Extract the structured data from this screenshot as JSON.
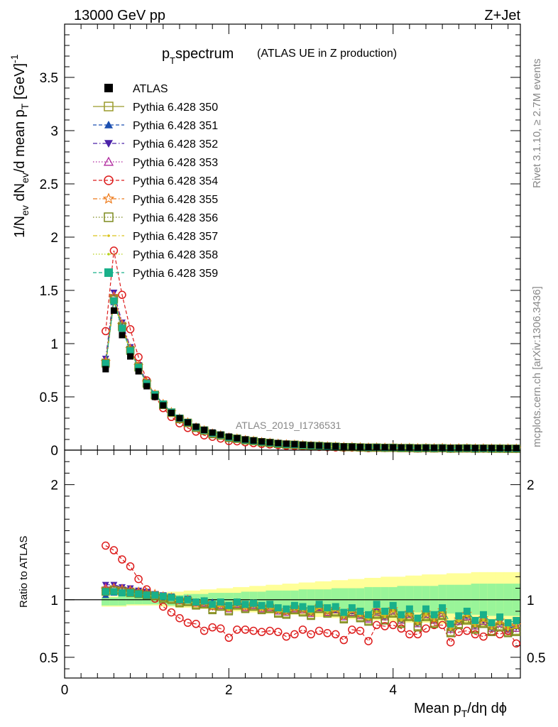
{
  "header": {
    "left": "13000 GeV pp",
    "right": "Z+Jet"
  },
  "title": {
    "main": "p",
    "sub": "T",
    "rest": " spectrum",
    "small": "(ATLAS UE in Z production)"
  },
  "side_labels": {
    "rivet": "Rivet 3.1.10, ≥ 2.7M events",
    "mcplots": "mcplots.cern.ch [arXiv:1306.3436]"
  },
  "watermark": "ATLAS_2019_I1736531",
  "axes": {
    "ylabel_top": "1/N_ev dN_ev/d mean p_T [GeV]^-1",
    "ylabel_bottom": "Ratio to ATLAS",
    "xlabel": "Mean p_T/dη dϕ",
    "top_ticks": [
      "0",
      "0.5",
      "1",
      "1.5",
      "2",
      "2.5",
      "3",
      "3.5"
    ],
    "bottom_ticks": [
      "0.5",
      "1",
      "2"
    ],
    "x_ticks": [
      "0",
      "2",
      "4"
    ]
  },
  "legend": [
    {
      "label": "ATLAS",
      "color": "#000000",
      "marker": "filled-square",
      "line": "none"
    },
    {
      "label": "Pythia 6.428 350",
      "color": "#9a9a2a",
      "marker": "open-square",
      "line": "solid"
    },
    {
      "label": "Pythia 6.428 351",
      "color": "#1b4fb0",
      "marker": "filled-triangle-up",
      "line": "dashed"
    },
    {
      "label": "Pythia 6.428 352",
      "color": "#4a22a8",
      "marker": "filled-triangle-down",
      "line": "dashdot"
    },
    {
      "label": "Pythia 6.428 353",
      "color": "#b0299e",
      "marker": "open-triangle-up",
      "line": "dotted"
    },
    {
      "label": "Pythia 6.428 354",
      "color": "#dd1b1b",
      "marker": "open-circle",
      "line": "dashed"
    },
    {
      "label": "Pythia 6.428 355",
      "color": "#ee7a1a",
      "marker": "open-star",
      "line": "dashdot"
    },
    {
      "label": "Pythia 6.428 356",
      "color": "#7d8a1e",
      "marker": "open-square",
      "line": "dotted"
    },
    {
      "label": "Pythia 6.428 357",
      "color": "#d9c21a",
      "marker": "small-dot",
      "line": "dashdot"
    },
    {
      "label": "Pythia 6.428 358",
      "color": "#b6d11a",
      "marker": "small-dot",
      "line": "dotted"
    },
    {
      "label": "Pythia 6.428 359",
      "color": "#19b08a",
      "marker": "filled-square",
      "line": "dashed"
    }
  ],
  "chart_data": {
    "type": "line",
    "xlim": [
      0,
      5.55
    ],
    "ylim_top": [
      0,
      4.0
    ],
    "ylim_bottom": [
      0.32,
      2.3
    ],
    "x": [
      0.5,
      0.6,
      0.7,
      0.8,
      0.9,
      1.0,
      1.1,
      1.2,
      1.3,
      1.4,
      1.5,
      1.6,
      1.7,
      1.8,
      1.9,
      2.0,
      2.1,
      2.2,
      2.3,
      2.4,
      2.5,
      2.6,
      2.7,
      2.8,
      2.9,
      3.0,
      3.1,
      3.2,
      3.3,
      3.4,
      3.5,
      3.6,
      3.7,
      3.8,
      3.9,
      4.0,
      4.1,
      4.2,
      4.3,
      4.4,
      4.5,
      4.6,
      4.7,
      4.8,
      4.9,
      5.0,
      5.1,
      5.2,
      5.3,
      5.4,
      5.5
    ],
    "atlas": [
      0.76,
      1.31,
      1.08,
      0.88,
      0.74,
      0.6,
      0.5,
      0.42,
      0.35,
      0.3,
      0.26,
      0.22,
      0.19,
      0.165,
      0.145,
      0.127,
      0.112,
      0.1,
      0.09,
      0.081,
      0.073,
      0.066,
      0.06,
      0.055,
      0.05,
      0.046,
      0.042,
      0.039,
      0.036,
      0.034,
      0.032,
      0.03,
      0.028,
      0.027,
      0.026,
      0.025,
      0.024,
      0.023,
      0.022,
      0.022,
      0.021,
      0.021,
      0.02,
      0.02,
      0.02,
      0.019,
      0.019,
      0.019,
      0.018,
      0.018,
      0.018
    ],
    "band_inner": [
      0.95,
      0.95,
      0.95,
      0.96,
      0.96,
      0.96,
      0.96,
      0.96,
      0.95,
      0.95,
      0.95,
      0.94,
      0.94,
      0.94,
      0.94,
      0.93,
      0.93,
      0.93,
      0.93,
      0.92,
      0.92,
      0.92,
      0.92,
      0.92,
      0.91,
      0.91,
      0.91,
      0.91,
      0.91,
      0.9,
      0.9,
      0.9,
      0.9,
      0.9,
      0.89,
      0.89,
      0.89,
      0.89,
      0.89,
      0.88,
      0.88,
      0.88,
      0.88,
      0.87,
      0.87,
      0.87,
      0.87,
      0.86,
      0.86,
      0.86,
      0.86
    ],
    "band_inner_hi": [
      1.02,
      1.02,
      1.03,
      1.03,
      1.03,
      1.03,
      1.03,
      1.04,
      1.04,
      1.04,
      1.05,
      1.05,
      1.05,
      1.06,
      1.06,
      1.06,
      1.06,
      1.07,
      1.07,
      1.07,
      1.08,
      1.08,
      1.08,
      1.08,
      1.09,
      1.09,
      1.09,
      1.09,
      1.1,
      1.1,
      1.1,
      1.1,
      1.11,
      1.11,
      1.11,
      1.11,
      1.12,
      1.12,
      1.12,
      1.12,
      1.12,
      1.13,
      1.13,
      1.13,
      1.13,
      1.14,
      1.14,
      1.14,
      1.14,
      1.14,
      1.14
    ],
    "band_outer_lo": [
      0.94,
      0.94,
      0.94,
      0.95,
      0.95,
      0.95,
      0.95,
      0.94,
      0.94,
      0.93,
      0.93,
      0.92,
      0.92,
      0.92,
      0.91,
      0.91,
      0.9,
      0.9,
      0.89,
      0.89,
      0.88,
      0.88,
      0.87,
      0.87,
      0.86,
      0.86,
      0.85,
      0.85,
      0.84,
      0.84,
      0.83,
      0.83,
      0.82,
      0.82,
      0.82,
      0.81,
      0.81,
      0.8,
      0.8,
      0.8,
      0.79,
      0.79,
      0.79,
      0.78,
      0.78,
      0.78,
      0.77,
      0.77,
      0.77,
      0.76,
      0.76
    ],
    "band_outer_hi": [
      1.03,
      1.03,
      1.04,
      1.04,
      1.05,
      1.05,
      1.06,
      1.06,
      1.07,
      1.07,
      1.08,
      1.08,
      1.09,
      1.09,
      1.1,
      1.1,
      1.11,
      1.11,
      1.12,
      1.12,
      1.13,
      1.13,
      1.14,
      1.14,
      1.15,
      1.15,
      1.16,
      1.16,
      1.17,
      1.17,
      1.18,
      1.18,
      1.19,
      1.19,
      1.2,
      1.2,
      1.2,
      1.21,
      1.21,
      1.22,
      1.22,
      1.22,
      1.23,
      1.23,
      1.23,
      1.24,
      1.24,
      1.24,
      1.24,
      1.24,
      1.24
    ],
    "series": [
      {
        "name": "Pythia 6.428 350",
        "ratio": [
          1.08,
          1.09,
          1.08,
          1.07,
          1.06,
          1.05,
          1.04,
          1.02,
          1.01,
          0.98,
          0.99,
          0.96,
          0.97,
          0.92,
          0.95,
          0.91,
          0.96,
          0.93,
          0.95,
          0.92,
          0.93,
          0.89,
          0.88,
          0.92,
          0.9,
          0.87,
          0.93,
          0.89,
          0.9,
          0.84,
          0.89,
          0.85,
          0.82,
          0.88,
          0.83,
          0.89,
          0.8,
          0.86,
          0.77,
          0.86,
          0.8,
          0.87,
          0.72,
          0.79,
          0.83,
          0.75,
          0.8,
          0.73,
          0.77,
          0.72,
          0.73
        ]
      },
      {
        "name": "Pythia 6.428 351",
        "ratio": [
          1.04,
          1.06,
          1.06,
          1.06,
          1.05,
          1.05,
          1.04,
          1.03,
          1.02,
          1.0,
          1.0,
          0.98,
          0.98,
          0.98,
          0.97,
          0.95,
          0.97,
          0.95,
          0.96,
          0.94,
          0.94,
          0.92,
          0.9,
          0.93,
          0.92,
          0.89,
          0.93,
          0.9,
          0.91,
          0.86,
          0.9,
          0.87,
          0.84,
          0.9,
          0.86,
          0.92,
          0.83,
          0.88,
          0.8,
          0.89,
          0.83,
          0.9,
          0.75,
          0.82,
          0.86,
          0.78,
          0.83,
          0.76,
          0.8,
          0.75,
          0.78
        ]
      },
      {
        "name": "Pythia 6.428 352",
        "ratio": [
          1.13,
          1.13,
          1.11,
          1.1,
          1.08,
          1.07,
          1.05,
          1.04,
          1.03,
          1.0,
          1.01,
          0.98,
          0.98,
          0.95,
          0.96,
          0.93,
          0.97,
          0.94,
          0.96,
          0.93,
          0.94,
          0.91,
          0.9,
          0.93,
          0.92,
          0.89,
          0.94,
          0.9,
          0.92,
          0.86,
          0.9,
          0.87,
          0.84,
          0.9,
          0.86,
          0.91,
          0.83,
          0.88,
          0.8,
          0.88,
          0.83,
          0.9,
          0.75,
          0.82,
          0.87,
          0.78,
          0.82,
          0.76,
          0.8,
          0.75,
          0.76
        ]
      },
      {
        "name": "Pythia 6.428 353",
        "ratio": [
          1.11,
          1.11,
          1.1,
          1.09,
          1.07,
          1.06,
          1.05,
          1.03,
          1.02,
          0.99,
          1.0,
          0.97,
          0.97,
          0.94,
          0.95,
          0.92,
          0.96,
          0.93,
          0.95,
          0.92,
          0.93,
          0.9,
          0.89,
          0.92,
          0.91,
          0.88,
          0.93,
          0.89,
          0.91,
          0.85,
          0.89,
          0.86,
          0.83,
          0.89,
          0.85,
          0.9,
          0.82,
          0.87,
          0.79,
          0.87,
          0.82,
          0.88,
          0.74,
          0.81,
          0.85,
          0.77,
          0.81,
          0.75,
          0.79,
          0.74,
          0.75
        ]
      },
      {
        "name": "Pythia 6.428 354",
        "ratio": [
          1.47,
          1.43,
          1.35,
          1.29,
          1.18,
          1.09,
          1.01,
          0.94,
          0.89,
          0.84,
          0.8,
          0.79,
          0.73,
          0.76,
          0.75,
          0.67,
          0.74,
          0.74,
          0.73,
          0.72,
          0.73,
          0.72,
          0.68,
          0.7,
          0.74,
          0.7,
          0.73,
          0.71,
          0.7,
          0.65,
          0.74,
          0.73,
          0.64,
          0.78,
          0.77,
          0.78,
          0.75,
          0.7,
          0.7,
          0.75,
          0.78,
          0.78,
          0.63,
          0.72,
          0.73,
          0.7,
          0.68,
          0.72,
          0.7,
          0.73,
          0.62
        ]
      },
      {
        "name": "Pythia 6.428 355",
        "ratio": [
          1.09,
          1.1,
          1.09,
          1.08,
          1.07,
          1.06,
          1.05,
          1.03,
          1.02,
          0.99,
          1.0,
          0.97,
          0.98,
          0.94,
          0.96,
          0.93,
          0.97,
          0.94,
          0.96,
          0.93,
          0.94,
          0.91,
          0.9,
          0.93,
          0.92,
          0.89,
          0.94,
          0.9,
          0.92,
          0.86,
          0.91,
          0.88,
          0.85,
          0.91,
          0.87,
          0.92,
          0.84,
          0.89,
          0.81,
          0.89,
          0.84,
          0.91,
          0.76,
          0.83,
          0.88,
          0.79,
          0.84,
          0.77,
          0.82,
          0.77,
          0.78
        ]
      },
      {
        "name": "Pythia 6.428 356",
        "ratio": [
          1.07,
          1.08,
          1.07,
          1.06,
          1.05,
          1.04,
          1.03,
          1.01,
          1.0,
          0.97,
          0.98,
          0.95,
          0.96,
          0.91,
          0.94,
          0.9,
          0.95,
          0.92,
          0.94,
          0.91,
          0.92,
          0.88,
          0.87,
          0.91,
          0.89,
          0.86,
          0.92,
          0.88,
          0.89,
          0.83,
          0.88,
          0.84,
          0.81,
          0.87,
          0.82,
          0.88,
          0.79,
          0.85,
          0.76,
          0.85,
          0.79,
          0.86,
          0.71,
          0.78,
          0.82,
          0.74,
          0.79,
          0.72,
          0.76,
          0.71,
          0.72
        ]
      },
      {
        "name": "Pythia 6.428 357",
        "ratio": [
          1.06,
          1.07,
          1.07,
          1.06,
          1.05,
          1.04,
          1.03,
          1.02,
          1.01,
          0.98,
          0.99,
          0.96,
          0.97,
          0.93,
          0.95,
          0.91,
          0.96,
          0.93,
          0.95,
          0.92,
          0.93,
          0.9,
          0.89,
          0.92,
          0.91,
          0.88,
          0.93,
          0.89,
          0.91,
          0.85,
          0.9,
          0.86,
          0.83,
          0.89,
          0.85,
          0.9,
          0.82,
          0.87,
          0.79,
          0.87,
          0.82,
          0.89,
          0.74,
          0.81,
          0.86,
          0.77,
          0.82,
          0.75,
          0.79,
          0.74,
          0.76
        ]
      },
      {
        "name": "Pythia 6.428 358",
        "ratio": [
          1.05,
          1.06,
          1.06,
          1.05,
          1.05,
          1.04,
          1.03,
          1.02,
          1.01,
          0.99,
          0.99,
          0.97,
          0.97,
          0.94,
          0.96,
          0.92,
          0.96,
          0.94,
          0.95,
          0.93,
          0.94,
          0.91,
          0.9,
          0.93,
          0.92,
          0.89,
          0.94,
          0.9,
          0.92,
          0.86,
          0.91,
          0.88,
          0.84,
          0.9,
          0.86,
          0.92,
          0.83,
          0.89,
          0.81,
          0.89,
          0.84,
          0.91,
          0.76,
          0.83,
          0.88,
          0.79,
          0.84,
          0.77,
          0.81,
          0.76,
          0.78
        ]
      },
      {
        "name": "Pythia 6.428 359",
        "ratio": [
          1.07,
          1.07,
          1.06,
          1.06,
          1.05,
          1.04,
          1.04,
          1.03,
          1.02,
          1.0,
          1.0,
          0.98,
          0.99,
          0.96,
          0.98,
          0.95,
          0.98,
          0.96,
          0.97,
          0.95,
          0.96,
          0.93,
          0.92,
          0.95,
          0.94,
          0.92,
          0.96,
          0.93,
          0.94,
          0.89,
          0.93,
          0.9,
          0.87,
          0.96,
          0.9,
          0.95,
          0.87,
          0.92,
          0.84,
          0.92,
          0.87,
          0.93,
          0.79,
          0.86,
          0.9,
          0.82,
          0.87,
          0.8,
          0.85,
          0.8,
          0.82
        ]
      }
    ]
  }
}
